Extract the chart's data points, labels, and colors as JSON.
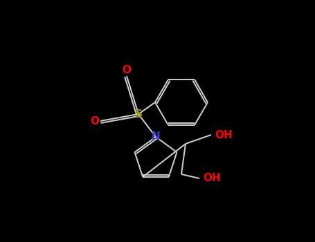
{
  "background_color": "#000000",
  "figsize": [
    4.55,
    3.5
  ],
  "dpi": 100,
  "bond_color": "#c8c8c8",
  "bond_lw": 1.5,
  "atom_colors": {
    "N": "#4444cc",
    "S": "#999900",
    "O": "#ff0000",
    "C": "#c8c8c8"
  },
  "scale": 1.0
}
